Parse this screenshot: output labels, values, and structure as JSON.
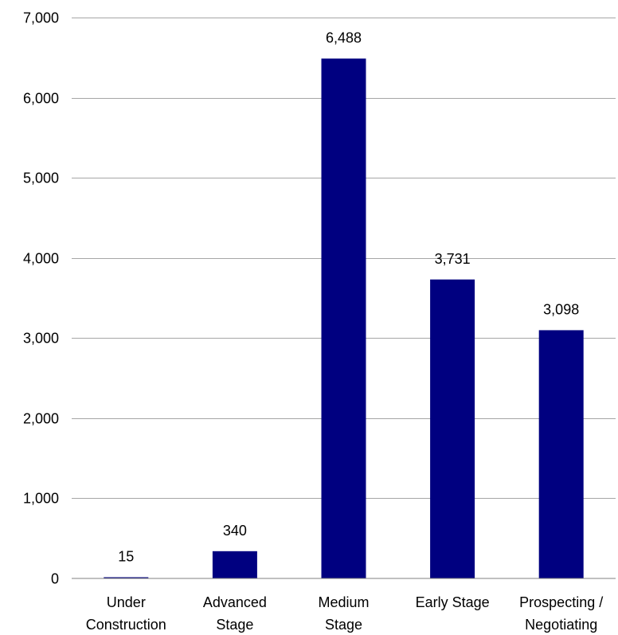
{
  "chart_data": {
    "type": "bar",
    "categories": [
      [
        "Under",
        "Construction"
      ],
      [
        "Advanced",
        "Stage"
      ],
      [
        "Medium",
        "Stage"
      ],
      [
        "Early Stage"
      ],
      [
        "Prospecting /",
        "Negotiating"
      ]
    ],
    "values": [
      15,
      340,
      6488,
      3731,
      3098
    ],
    "value_labels": [
      "15",
      "340",
      "6,488",
      "3,731",
      "3,098"
    ],
    "yticks": [
      0,
      1000,
      2000,
      3000,
      4000,
      5000,
      6000,
      7000
    ],
    "ytick_labels": [
      "0",
      "1,000",
      "2,000",
      "3,000",
      "4,000",
      "5,000",
      "6,000",
      "7,000"
    ],
    "ylim": [
      0,
      7000
    ],
    "grid": true,
    "legend": "none",
    "bar_color": "#000080"
  }
}
